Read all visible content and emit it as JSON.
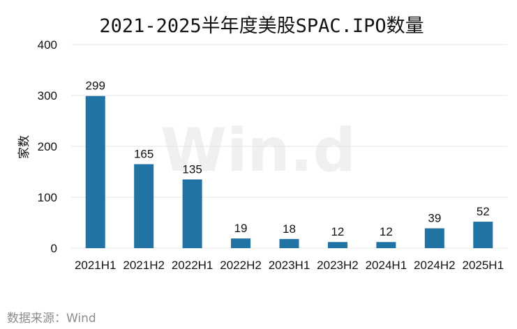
{
  "chart_data": {
    "type": "bar",
    "title": "2021-2025半年度美股SPAC.IPO数量",
    "ylabel": "家数",
    "xlabel": "",
    "ylim": [
      0,
      400
    ],
    "yticks": [
      0,
      100,
      200,
      300,
      400
    ],
    "categories": [
      "2021H1",
      "2021H2",
      "2022H1",
      "2022H2",
      "2023H1",
      "2023H2",
      "2024H1",
      "2024H2",
      "2025H1"
    ],
    "values": [
      299,
      165,
      135,
      19,
      18,
      12,
      12,
      39,
      52
    ],
    "grid": true,
    "bar_color": "#2173a3",
    "grid_color": "#e6e6e6"
  },
  "watermark": "Win.d",
  "source": "数据来源：Wind"
}
